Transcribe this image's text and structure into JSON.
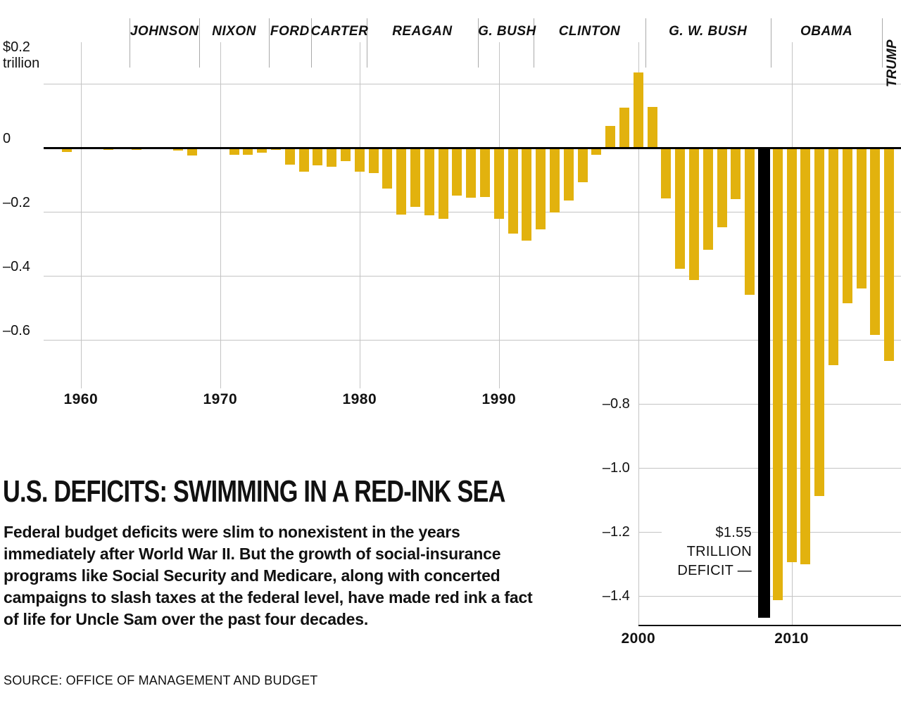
{
  "page": {
    "title": "U.S. DEFICITS: SWIMMING IN A RED-INK SEA",
    "description": "Federal budget deficits were slim to nonexistent in the years immediately after World War II. But the growth of social-insurance programs like Social Security and Medicare, along with concerted campaigns to slash taxes at the federal level, have made red ink a fact of life for Uncle Sam over the past four decades.",
    "source": "SOURCE: OFFICE OF MANAGEMENT AND BUDGET"
  },
  "colors": {
    "bar": "#e2b20e",
    "highlight_bar": "#000000",
    "grid": "#c4c4c4",
    "axis": "#000000",
    "text": "#111111"
  },
  "chart_data": {
    "type": "bar",
    "unit": "$ trillion",
    "ylim": [
      -1.55,
      0.25
    ],
    "y_axis": {
      "top_label_line1": "$0.2",
      "top_label_line2": "trillion",
      "left_ticks": [
        {
          "value": 0.2,
          "label": ""
        },
        {
          "value": 0,
          "label": "0"
        },
        {
          "value": -0.2,
          "label": "–0.2"
        },
        {
          "value": -0.4,
          "label": "–0.4"
        },
        {
          "value": -0.6,
          "label": "–0.6"
        }
      ],
      "right_ticks": [
        {
          "value": -0.8,
          "label": "–0.8"
        },
        {
          "value": -1.0,
          "label": "–1.0"
        },
        {
          "value": -1.2,
          "label": "–1.2"
        },
        {
          "value": -1.4,
          "label": "–1.4"
        }
      ]
    },
    "x_axis": {
      "decades": [
        1960,
        1970,
        1980,
        1990,
        2000,
        2010
      ]
    },
    "presidents": [
      {
        "name": "JOHNSON",
        "start": 1964
      },
      {
        "name": "NIXON",
        "start": 1969
      },
      {
        "name": "FORD",
        "start": 1974
      },
      {
        "name": "CARTER",
        "start": 1977
      },
      {
        "name": "REAGAN",
        "start": 1981
      },
      {
        "name": "G. BUSH",
        "start": 1989
      },
      {
        "name": "CLINTON",
        "start": 1993
      },
      {
        "name": "G. W. BUSH",
        "start": 2001
      },
      {
        "name": "OBAMA",
        "start": 2009
      },
      {
        "name": "TRUMP",
        "start": 2017,
        "vertical": true
      }
    ],
    "annotation": {
      "line1": "$1.55",
      "line2": "TRILLION",
      "line3": "DEFICIT —"
    },
    "bars": [
      {
        "year": 1959,
        "value": -0.013
      },
      {
        "year": 1960,
        "value": 0.0
      },
      {
        "year": 1961,
        "value": -0.003
      },
      {
        "year": 1962,
        "value": -0.007
      },
      {
        "year": 1963,
        "value": -0.005
      },
      {
        "year": 1964,
        "value": -0.006
      },
      {
        "year": 1965,
        "value": -0.001
      },
      {
        "year": 1966,
        "value": -0.004
      },
      {
        "year": 1967,
        "value": -0.009
      },
      {
        "year": 1968,
        "value": -0.025
      },
      {
        "year": 1969,
        "value": 0.003
      },
      {
        "year": 1970,
        "value": -0.003
      },
      {
        "year": 1971,
        "value": -0.023
      },
      {
        "year": 1972,
        "value": -0.023
      },
      {
        "year": 1973,
        "value": -0.015
      },
      {
        "year": 1974,
        "value": -0.006
      },
      {
        "year": 1975,
        "value": -0.053
      },
      {
        "year": 1976,
        "value": -0.074
      },
      {
        "year": 1977,
        "value": -0.054
      },
      {
        "year": 1978,
        "value": -0.059
      },
      {
        "year": 1979,
        "value": -0.041
      },
      {
        "year": 1980,
        "value": -0.074
      },
      {
        "year": 1981,
        "value": -0.079
      },
      {
        "year": 1982,
        "value": -0.128
      },
      {
        "year": 1983,
        "value": -0.208
      },
      {
        "year": 1984,
        "value": -0.185
      },
      {
        "year": 1985,
        "value": -0.212
      },
      {
        "year": 1986,
        "value": -0.221
      },
      {
        "year": 1987,
        "value": -0.15
      },
      {
        "year": 1988,
        "value": -0.155
      },
      {
        "year": 1989,
        "value": -0.153
      },
      {
        "year": 1990,
        "value": -0.221
      },
      {
        "year": 1991,
        "value": -0.269
      },
      {
        "year": 1992,
        "value": -0.29
      },
      {
        "year": 1993,
        "value": -0.255
      },
      {
        "year": 1994,
        "value": -0.203
      },
      {
        "year": 1995,
        "value": -0.164
      },
      {
        "year": 1996,
        "value": -0.107
      },
      {
        "year": 1997,
        "value": -0.022
      },
      {
        "year": 1998,
        "value": 0.069
      },
      {
        "year": 1999,
        "value": 0.126
      },
      {
        "year": 2000,
        "value": 0.236
      },
      {
        "year": 2001,
        "value": 0.128
      },
      {
        "year": 2002,
        "value": -0.158
      },
      {
        "year": 2003,
        "value": -0.378
      },
      {
        "year": 2004,
        "value": -0.413
      },
      {
        "year": 2005,
        "value": -0.318
      },
      {
        "year": 2006,
        "value": -0.248
      },
      {
        "year": 2007,
        "value": -0.161
      },
      {
        "year": 2008,
        "value": -0.459
      },
      {
        "year": "highlight",
        "value": -1.55,
        "highlight": true
      },
      {
        "year": 2009,
        "value": -1.413
      },
      {
        "year": 2010,
        "value": -1.294
      },
      {
        "year": 2011,
        "value": -1.3
      },
      {
        "year": 2012,
        "value": -1.087
      },
      {
        "year": 2013,
        "value": -0.68
      },
      {
        "year": 2014,
        "value": -0.485
      },
      {
        "year": 2015,
        "value": -0.439
      },
      {
        "year": 2016,
        "value": -0.585
      },
      {
        "year": 2017,
        "value": -0.665
      }
    ]
  }
}
